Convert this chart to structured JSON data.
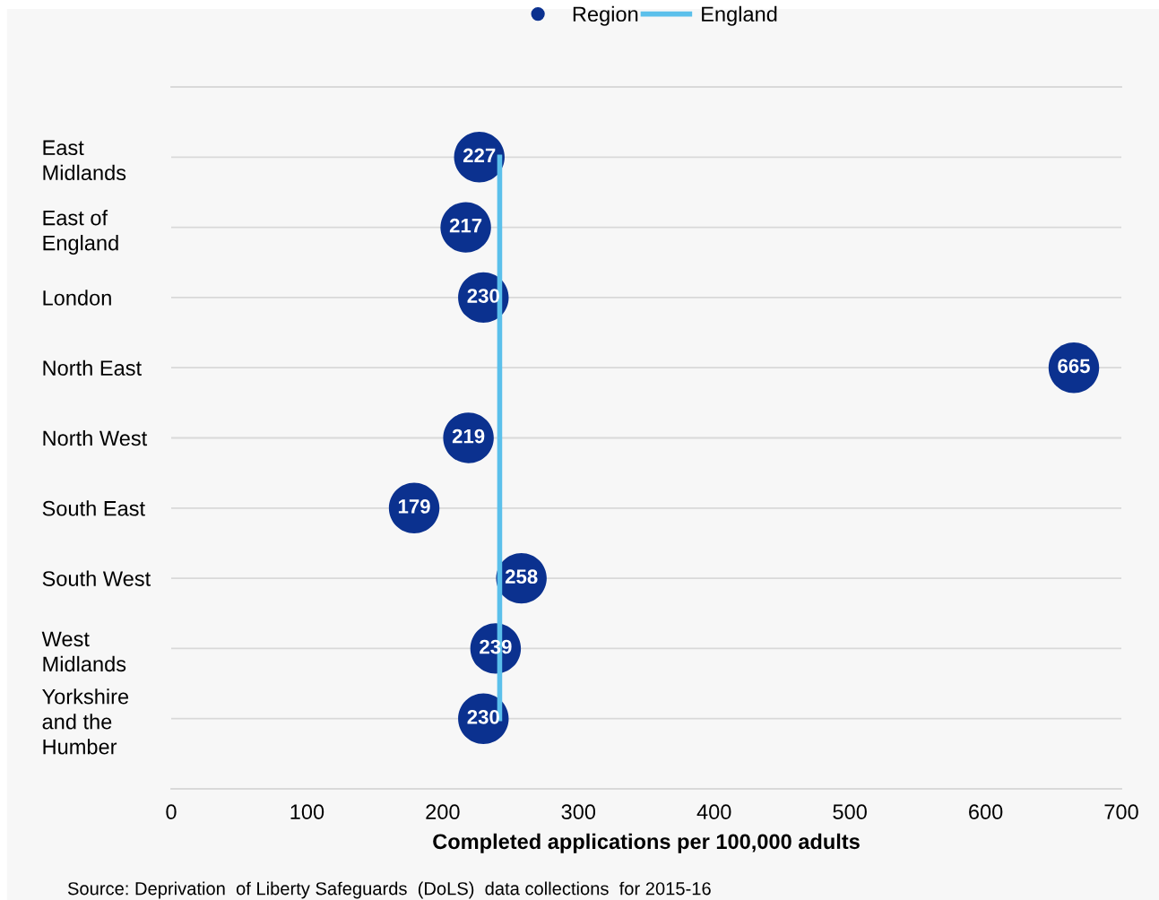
{
  "chart_data": {
    "type": "scatter",
    "orientation": "horizontal",
    "categories": [
      "East\nMidlands",
      "East of\nEngland",
      "London",
      "North East",
      "North West",
      "South East",
      "South West",
      "West\nMidlands",
      "Yorkshire\nand the\nHumber"
    ],
    "series": [
      {
        "name": "Region",
        "color": "#0b318f",
        "marker": "circle",
        "data_labels": true,
        "values": [
          227,
          217,
          230,
          665,
          219,
          179,
          258,
          239,
          230
        ]
      },
      {
        "name": "England",
        "type": "line",
        "color": "#5bc0eb",
        "marker": "none",
        "line_style": "solid",
        "values": [
          242,
          242,
          242,
          242,
          242,
          242,
          242,
          242,
          242
        ]
      }
    ],
    "xlim": [
      0,
      700
    ],
    "xticks": [
      0,
      100,
      200,
      300,
      400,
      500,
      600,
      700
    ],
    "xlabel": "Completed applications per 100,000 adults",
    "grid": "y",
    "legend": "top",
    "annotations": [
      "Source: Deprivation  of Liberty Safeguards  (DoLS)  data collections  for 2015-16"
    ]
  }
}
